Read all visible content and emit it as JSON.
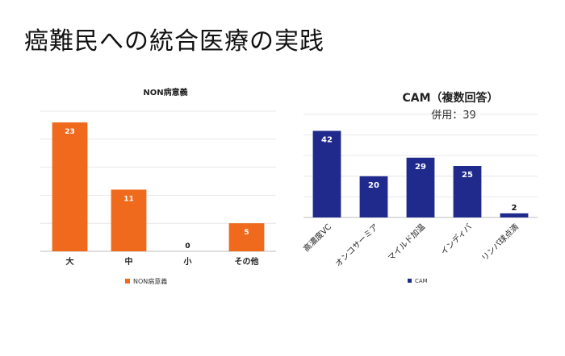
{
  "slide": {
    "title": "癌難民への統合医療の実践"
  },
  "chart_data": [
    {
      "type": "bar",
      "title": "NON病意義",
      "subtitle": "",
      "categories": [
        "大",
        "中",
        "小",
        "その他"
      ],
      "series": [
        {
          "name": "NON病意義",
          "values": [
            23,
            11,
            0,
            5
          ]
        }
      ],
      "ylim": [
        0,
        25
      ],
      "grid": true,
      "legend": "bottom",
      "color": "#f06a1e"
    },
    {
      "type": "bar",
      "title": "CAM（複数回答）",
      "subtitle": "併用：39",
      "categories": [
        "高濃度VC",
        "オンコサーミア",
        "マイルド加温",
        "インディバ",
        "リンパ球点滴"
      ],
      "series": [
        {
          "name": "CAM",
          "values": [
            42,
            20,
            29,
            25,
            2
          ]
        }
      ],
      "ylim": [
        0,
        50
      ],
      "grid": true,
      "legend": "bottom",
      "color": "#1f2a8c"
    }
  ]
}
